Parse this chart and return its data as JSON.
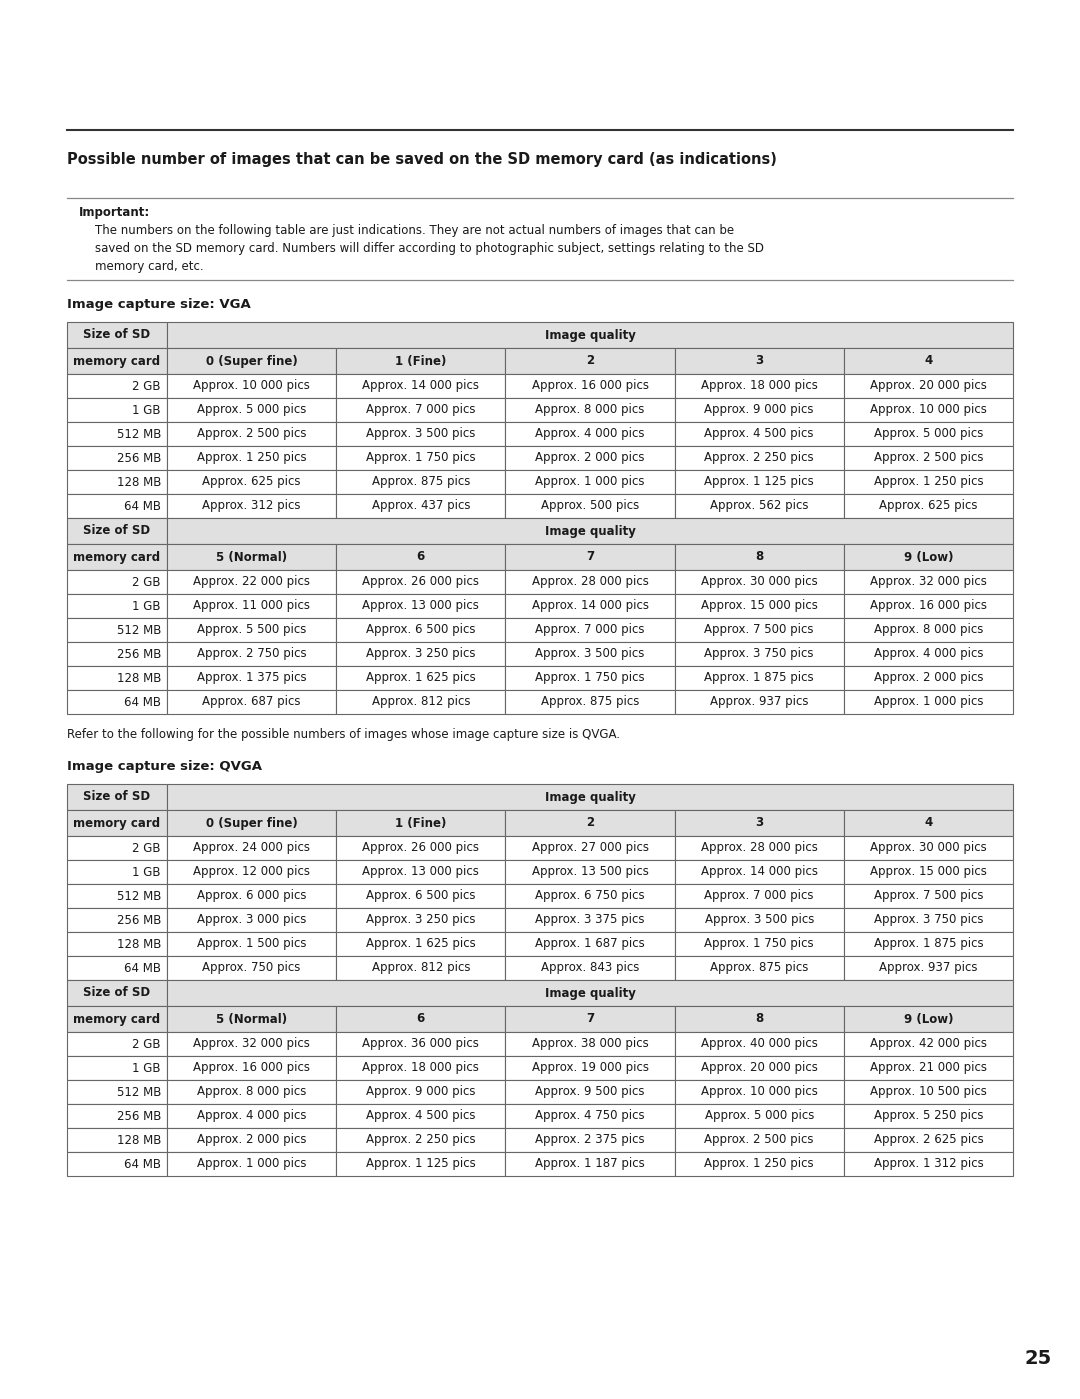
{
  "title": "Possible number of images that can be saved on the SD memory card (as indications)",
  "important_label": "Important:",
  "important_line1": "The numbers on the following table are just indications. They are not actual numbers of images that can be",
  "important_line2": "saved on the SD memory card. Numbers will differ according to photographic subject, settings relating to the SD",
  "important_line3": "memory card, etc.",
  "vga_label": "Image capture size: VGA",
  "qvga_label": "Image capture size: QVGA",
  "refer_text": "Refer to the following for the possible numbers of images whose image capture size is QVGA.",
  "page_number": "25",
  "col_headers_top": [
    "0 (Super fine)",
    "1 (Fine)",
    "2",
    "3",
    "4"
  ],
  "col_headers_bottom": [
    "5 (Normal)",
    "6",
    "7",
    "8",
    "9 (Low)"
  ],
  "sd_sizes": [
    "2 GB",
    "1 GB",
    "512 MB",
    "256 MB",
    "128 MB",
    "64 MB"
  ],
  "vga_top_data": [
    [
      "Approx. 10 000 pics",
      "Approx. 14 000 pics",
      "Approx. 16 000 pics",
      "Approx. 18 000 pics",
      "Approx. 20 000 pics"
    ],
    [
      "Approx. 5 000 pics",
      "Approx. 7 000 pics",
      "Approx. 8 000 pics",
      "Approx. 9 000 pics",
      "Approx. 10 000 pics"
    ],
    [
      "Approx. 2 500 pics",
      "Approx. 3 500 pics",
      "Approx. 4 000 pics",
      "Approx. 4 500 pics",
      "Approx. 5 000 pics"
    ],
    [
      "Approx. 1 250 pics",
      "Approx. 1 750 pics",
      "Approx. 2 000 pics",
      "Approx. 2 250 pics",
      "Approx. 2 500 pics"
    ],
    [
      "Approx. 625 pics",
      "Approx. 875 pics",
      "Approx. 1 000 pics",
      "Approx. 1 125 pics",
      "Approx. 1 250 pics"
    ],
    [
      "Approx. 312 pics",
      "Approx. 437 pics",
      "Approx. 500 pics",
      "Approx. 562 pics",
      "Approx. 625 pics"
    ]
  ],
  "vga_bottom_data": [
    [
      "Approx. 22 000 pics",
      "Approx. 26 000 pics",
      "Approx. 28 000 pics",
      "Approx. 30 000 pics",
      "Approx. 32 000 pics"
    ],
    [
      "Approx. 11 000 pics",
      "Approx. 13 000 pics",
      "Approx. 14 000 pics",
      "Approx. 15 000 pics",
      "Approx. 16 000 pics"
    ],
    [
      "Approx. 5 500 pics",
      "Approx. 6 500 pics",
      "Approx. 7 000 pics",
      "Approx. 7 500 pics",
      "Approx. 8 000 pics"
    ],
    [
      "Approx. 2 750 pics",
      "Approx. 3 250 pics",
      "Approx. 3 500 pics",
      "Approx. 3 750 pics",
      "Approx. 4 000 pics"
    ],
    [
      "Approx. 1 375 pics",
      "Approx. 1 625 pics",
      "Approx. 1 750 pics",
      "Approx. 1 875 pics",
      "Approx. 2 000 pics"
    ],
    [
      "Approx. 687 pics",
      "Approx. 812 pics",
      "Approx. 875 pics",
      "Approx. 937 pics",
      "Approx. 1 000 pics"
    ]
  ],
  "qvga_top_data": [
    [
      "Approx. 24 000 pics",
      "Approx. 26 000 pics",
      "Approx. 27 000 pics",
      "Approx. 28 000 pics",
      "Approx. 30 000 pics"
    ],
    [
      "Approx. 12 000 pics",
      "Approx. 13 000 pics",
      "Approx. 13 500 pics",
      "Approx. 14 000 pics",
      "Approx. 15 000 pics"
    ],
    [
      "Approx. 6 000 pics",
      "Approx. 6 500 pics",
      "Approx. 6 750 pics",
      "Approx. 7 000 pics",
      "Approx. 7 500 pics"
    ],
    [
      "Approx. 3 000 pics",
      "Approx. 3 250 pics",
      "Approx. 3 375 pics",
      "Approx. 3 500 pics",
      "Approx. 3 750 pics"
    ],
    [
      "Approx. 1 500 pics",
      "Approx. 1 625 pics",
      "Approx. 1 687 pics",
      "Approx. 1 750 pics",
      "Approx. 1 875 pics"
    ],
    [
      "Approx. 750 pics",
      "Approx. 812 pics",
      "Approx. 843 pics",
      "Approx. 875 pics",
      "Approx. 937 pics"
    ]
  ],
  "qvga_bottom_data": [
    [
      "Approx. 32 000 pics",
      "Approx. 36 000 pics",
      "Approx. 38 000 pics",
      "Approx. 40 000 pics",
      "Approx. 42 000 pics"
    ],
    [
      "Approx. 16 000 pics",
      "Approx. 18 000 pics",
      "Approx. 19 000 pics",
      "Approx. 20 000 pics",
      "Approx. 21 000 pics"
    ],
    [
      "Approx. 8 000 pics",
      "Approx. 9 000 pics",
      "Approx. 9 500 pics",
      "Approx. 10 000 pics",
      "Approx. 10 500 pics"
    ],
    [
      "Approx. 4 000 pics",
      "Approx. 4 500 pics",
      "Approx. 4 750 pics",
      "Approx. 5 000 pics",
      "Approx. 5 250 pics"
    ],
    [
      "Approx. 2 000 pics",
      "Approx. 2 250 pics",
      "Approx. 2 375 pics",
      "Approx. 2 500 pics",
      "Approx. 2 625 pics"
    ],
    [
      "Approx. 1 000 pics",
      "Approx. 1 125 pics",
      "Approx. 1 187 pics",
      "Approx. 1 250 pics",
      "Approx. 1 312 pics"
    ]
  ],
  "bg_color": "#ffffff",
  "text_color": "#1a1a1a",
  "border_color": "#666666",
  "header_bg": "#e0e0e0"
}
